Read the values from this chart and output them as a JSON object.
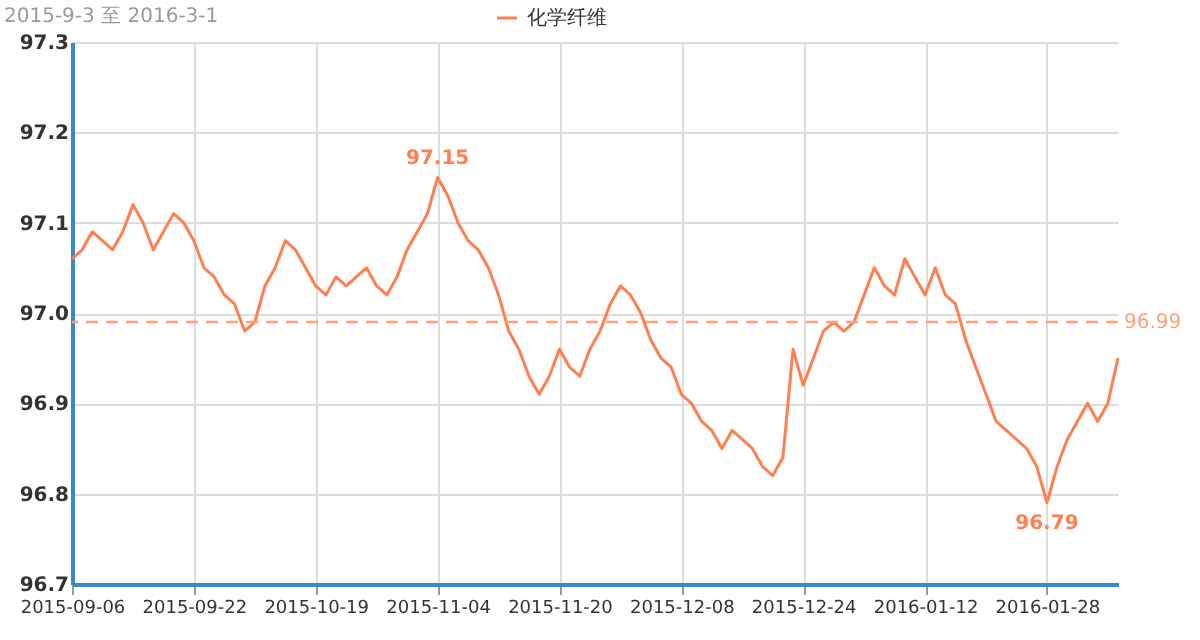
{
  "chart_data": {
    "type": "line",
    "title": "2015-9-3 至 2016-3-1",
    "categories": [
      "2015-09-06",
      null,
      null,
      null,
      null,
      null,
      null,
      null,
      null,
      null,
      null,
      null,
      "2015-09-22",
      null,
      null,
      null,
      null,
      null,
      null,
      null,
      null,
      null,
      null,
      null,
      "2015-10-19",
      null,
      null,
      null,
      null,
      null,
      null,
      null,
      null,
      null,
      null,
      null,
      "2015-11-04",
      null,
      null,
      null,
      null,
      null,
      null,
      null,
      null,
      null,
      null,
      null,
      "2015-11-20",
      null,
      null,
      null,
      null,
      null,
      null,
      null,
      null,
      null,
      null,
      null,
      "2015-12-08",
      null,
      null,
      null,
      null,
      null,
      null,
      null,
      null,
      null,
      null,
      null,
      "2015-12-24",
      null,
      null,
      null,
      null,
      null,
      null,
      null,
      null,
      null,
      null,
      null,
      "2016-01-12",
      null,
      null,
      null,
      null,
      null,
      null,
      null,
      null,
      null,
      null,
      null,
      "2016-01-28",
      null,
      null,
      null,
      null,
      null,
      null,
      null
    ],
    "series": [
      {
        "name": "化学纤维",
        "color": "#ff7f50",
        "values": [
          97.06,
          97.07,
          97.09,
          97.08,
          97.07,
          97.09,
          97.12,
          97.1,
          97.07,
          97.09,
          97.11,
          97.1,
          97.08,
          97.05,
          97.04,
          97.02,
          97.01,
          96.98,
          96.99,
          97.03,
          97.05,
          97.08,
          97.07,
          97.05,
          97.03,
          97.02,
          97.04,
          97.03,
          97.04,
          97.05,
          97.03,
          97.02,
          97.04,
          97.07,
          97.09,
          97.11,
          97.15,
          97.13,
          97.1,
          97.08,
          97.07,
          97.05,
          97.02,
          96.98,
          96.96,
          96.93,
          96.91,
          96.93,
          96.96,
          96.94,
          96.93,
          96.96,
          96.98,
          97.01,
          97.03,
          97.02,
          97.0,
          96.97,
          96.95,
          96.94,
          96.91,
          96.9,
          96.88,
          96.87,
          96.85,
          96.87,
          96.86,
          96.85,
          96.83,
          96.82,
          96.84,
          96.96,
          96.92,
          96.95,
          96.98,
          96.99,
          96.98,
          96.99,
          97.02,
          97.05,
          97.03,
          97.02,
          97.06,
          97.04,
          97.02,
          97.05,
          97.02,
          97.01,
          96.97,
          96.94,
          96.91,
          96.88,
          96.87,
          96.86,
          96.85,
          96.83,
          96.79,
          96.83,
          96.86,
          96.88,
          96.9,
          96.88,
          96.9,
          96.95
        ]
      }
    ],
    "ylim": [
      96.7,
      97.3
    ],
    "yticks": [
      96.7,
      96.8,
      96.9,
      {
        "value": 97,
        "label": "97.0"
      },
      97.1,
      97.2,
      97.3
    ],
    "grid": true,
    "legend": "top",
    "ref_lines": [
      {
        "axis": "y",
        "value": 96.99,
        "label": "96.99",
        "color": "#ffa07a",
        "line_style": "dashed"
      }
    ],
    "annotations": [
      {
        "text": "97.15",
        "x": "2015-11-04",
        "y": 97.15
      },
      {
        "text": "96.79",
        "x": "2016-01-28",
        "y": 96.79
      }
    ]
  }
}
